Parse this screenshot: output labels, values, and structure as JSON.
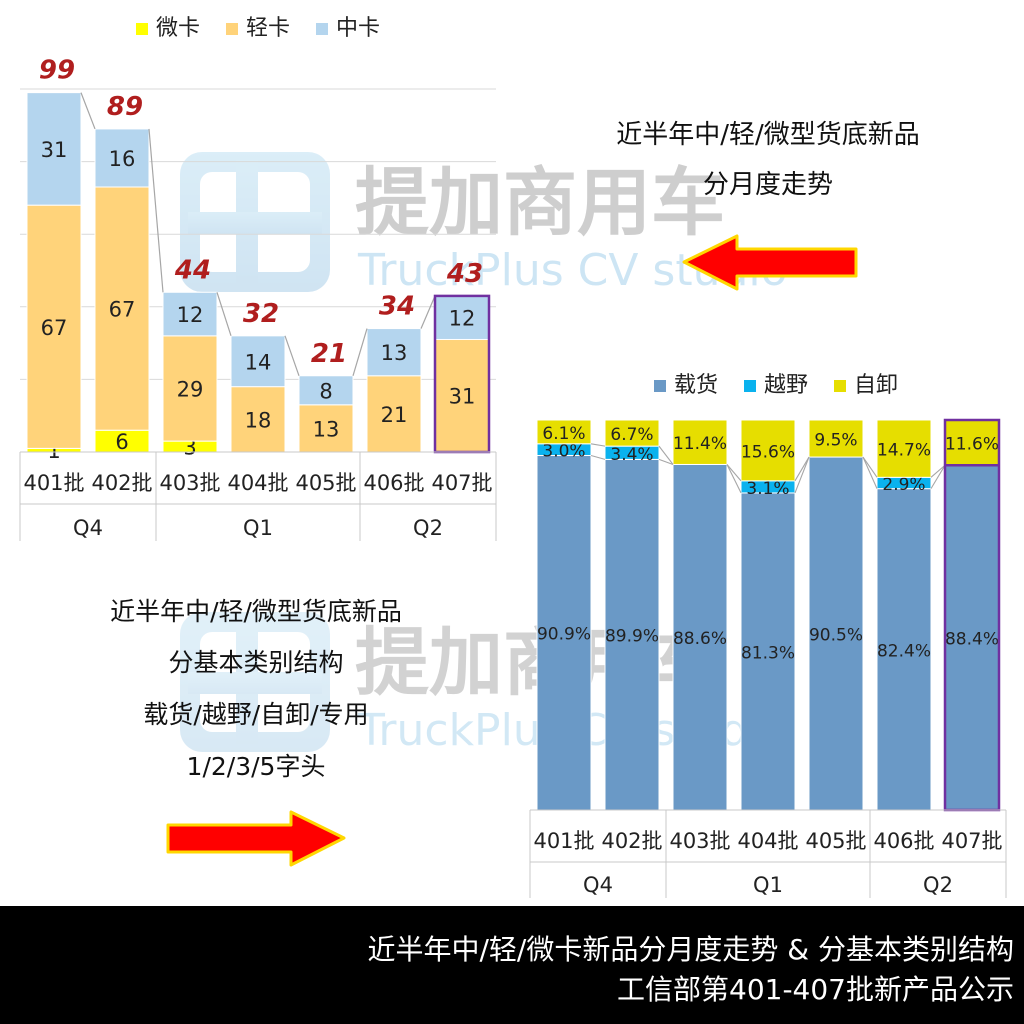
{
  "colors": {
    "weika": "#FFFF00",
    "qingka": "#FFD37A",
    "zhongka": "#B4D5EE",
    "zaihuo": "#6A99C6",
    "yueye": "#0AB2EE",
    "zixie": "#E6DE00",
    "total_label": "#B01E1E",
    "arrow": "#FF0000",
    "highlight": "#7030A0",
    "footer_bg": "#000000"
  },
  "callout_top": {
    "line1": "近半年中/轻/微型货底新品",
    "line2": "分月度走势"
  },
  "callout_bottom": {
    "line1": "近半年中/轻/微型货底新品",
    "line2": "分基本类别结构",
    "line3": "载货/越野/自卸/专用",
    "line4": "1/2/3/5字头"
  },
  "watermark": {
    "brand": "提加商用车",
    "sub": "TruckPlus CV studio"
  },
  "footer": {
    "line1": "近半年中/轻/微卡新品分月度走势 & 分基本类别结构",
    "line2": "工信部第401-407批新产品公示"
  },
  "chart_data": [
    {
      "type": "bar",
      "stacked": true,
      "categories": [
        "401批",
        "402批",
        "403批",
        "404批",
        "405批",
        "406批",
        "407批"
      ],
      "groups": [
        {
          "label": "Q4",
          "count": 2
        },
        {
          "label": "Q1",
          "count": 3
        },
        {
          "label": "Q2",
          "count": 2
        }
      ],
      "series": [
        {
          "name": "微卡",
          "values": [
            1,
            6,
            3,
            0,
            0,
            0,
            0
          ]
        },
        {
          "name": "轻卡",
          "values": [
            67,
            67,
            29,
            18,
            13,
            21,
            31
          ]
        },
        {
          "name": "中卡",
          "values": [
            31,
            16,
            12,
            14,
            8,
            13,
            12
          ]
        }
      ],
      "totals": [
        99,
        89,
        44,
        32,
        21,
        34,
        43
      ],
      "legend_position": "top",
      "ylim": [
        0,
        100
      ],
      "grid": true
    },
    {
      "type": "bar",
      "stacked": true,
      "percent": true,
      "categories": [
        "401批",
        "402批",
        "403批",
        "404批",
        "405批",
        "406批",
        "407批"
      ],
      "groups": [
        {
          "label": "Q4",
          "count": 2
        },
        {
          "label": "Q1",
          "count": 3
        },
        {
          "label": "Q2",
          "count": 2
        }
      ],
      "series": [
        {
          "name": "载货",
          "values": [
            90.9,
            89.9,
            88.6,
            81.3,
            90.5,
            82.4,
            88.4
          ],
          "labels": [
            "90.9%",
            "89.9%",
            "88.6%",
            "81.3%",
            "90.5%",
            "82.4%",
            "88.4%"
          ]
        },
        {
          "name": "越野",
          "values": [
            3.0,
            3.4,
            0,
            3.1,
            0,
            2.9,
            0
          ],
          "labels": [
            "3.0%",
            "3.4%",
            "",
            "3.1%",
            "",
            "2.9%",
            ""
          ]
        },
        {
          "name": "自卸",
          "values": [
            6.1,
            6.7,
            11.4,
            15.6,
            9.5,
            14.7,
            11.6
          ],
          "labels": [
            "6.1%",
            "6.7%",
            "11.4%",
            "15.6%",
            "9.5%",
            "14.7%",
            "11.6%"
          ]
        }
      ],
      "legend_position": "top",
      "ylim": [
        0,
        100
      ]
    }
  ]
}
